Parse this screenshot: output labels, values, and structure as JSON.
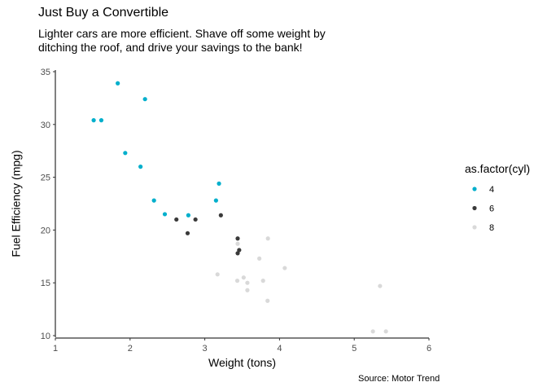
{
  "title": "Just Buy a Convertible",
  "subtitle": "Lighter cars are more efficient. Shave off some weight by ditching the roof, and drive your savings to the bank!",
  "caption": "Source: Motor Trend",
  "chart_data": {
    "type": "scatter",
    "xlabel": "Weight (tons)",
    "ylabel": "Fuel Efficiency (mpg)",
    "xlim": [
      1,
      6
    ],
    "ylim": [
      10,
      35
    ],
    "xticks": [
      1,
      2,
      3,
      4,
      5,
      6
    ],
    "yticks": [
      10,
      15,
      20,
      25,
      30,
      35
    ],
    "grid": false,
    "legend": {
      "title": "as.factor(cyl)",
      "placement": "right"
    },
    "series": [
      {
        "name": "4",
        "color": "#00AFCC",
        "points": [
          [
            1.513,
            30.4
          ],
          [
            1.615,
            30.4
          ],
          [
            1.835,
            33.9
          ],
          [
            1.935,
            27.3
          ],
          [
            2.14,
            26.0
          ],
          [
            2.2,
            32.4
          ],
          [
            2.32,
            22.8
          ],
          [
            2.465,
            21.5
          ],
          [
            2.78,
            21.4
          ],
          [
            3.15,
            22.8
          ],
          [
            3.19,
            24.4
          ]
        ]
      },
      {
        "name": "6",
        "color": "#3A3A3A",
        "points": [
          [
            2.62,
            21.0
          ],
          [
            2.77,
            19.7
          ],
          [
            2.875,
            21.0
          ],
          [
            3.215,
            21.4
          ],
          [
            3.44,
            19.2
          ],
          [
            3.44,
            17.8
          ],
          [
            3.46,
            18.1
          ]
        ]
      },
      {
        "name": "8",
        "color": "#D9D9D9",
        "points": [
          [
            3.17,
            15.8
          ],
          [
            3.435,
            15.2
          ],
          [
            3.44,
            18.7
          ],
          [
            3.52,
            15.5
          ],
          [
            3.57,
            14.3
          ],
          [
            3.57,
            15.0
          ],
          [
            3.73,
            17.3
          ],
          [
            3.78,
            15.2
          ],
          [
            3.84,
            13.3
          ],
          [
            3.845,
            19.2
          ],
          [
            4.07,
            16.4
          ],
          [
            5.25,
            10.4
          ],
          [
            5.345,
            14.7
          ],
          [
            5.424,
            10.4
          ]
        ]
      }
    ]
  }
}
